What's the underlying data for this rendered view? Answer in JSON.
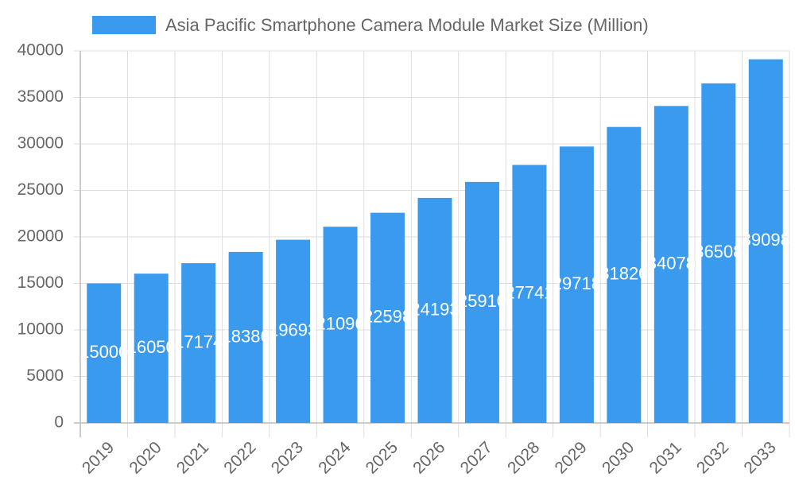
{
  "chart_data": {
    "type": "bar",
    "categories": [
      "2019",
      "2020",
      "2021",
      "2022",
      "2023",
      "2024",
      "2025",
      "2026",
      "2027",
      "2028",
      "2029",
      "2030",
      "2031",
      "2032",
      "2033"
    ],
    "series": [
      {
        "name": "Asia Pacific Smartphone Camera Module Market Size (Million)",
        "color": "#3a9aee",
        "values": [
          15000,
          16050,
          17174,
          18386,
          19693,
          21096,
          22598,
          24193,
          25910,
          27741,
          29718,
          31820,
          34078,
          36508,
          39098
        ]
      }
    ],
    "ylim": [
      0,
      40000
    ],
    "yticks": [
      0,
      5000,
      10000,
      15000,
      20000,
      25000,
      30000,
      35000,
      40000
    ],
    "grid": true,
    "legend": "top"
  }
}
